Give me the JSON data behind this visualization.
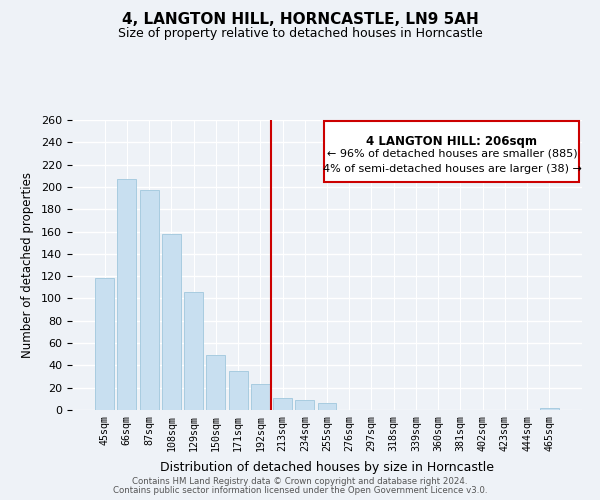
{
  "title": "4, LANGTON HILL, HORNCASTLE, LN9 5AH",
  "subtitle": "Size of property relative to detached houses in Horncastle",
  "xlabel": "Distribution of detached houses by size in Horncastle",
  "ylabel": "Number of detached properties",
  "bar_labels": [
    "45sqm",
    "66sqm",
    "87sqm",
    "108sqm",
    "129sqm",
    "150sqm",
    "171sqm",
    "192sqm",
    "213sqm",
    "234sqm",
    "255sqm",
    "276sqm",
    "297sqm",
    "318sqm",
    "339sqm",
    "360sqm",
    "381sqm",
    "402sqm",
    "423sqm",
    "444sqm",
    "465sqm"
  ],
  "bar_values": [
    118,
    207,
    197,
    158,
    106,
    49,
    35,
    23,
    11,
    9,
    6,
    0,
    0,
    0,
    0,
    0,
    0,
    0,
    0,
    0,
    2
  ],
  "bar_color": "#c8dff0",
  "bar_edge_color": "#a8cce0",
  "vline_x": 7.5,
  "vline_color": "#cc0000",
  "annotation_title": "4 LANGTON HILL: 206sqm",
  "annotation_line1": "← 96% of detached houses are smaller (885)",
  "annotation_line2": "4% of semi-detached houses are larger (38) →",
  "annotation_box_color": "#ffffff",
  "annotation_box_edge": "#cc0000",
  "ylim": [
    0,
    260
  ],
  "yticks": [
    0,
    20,
    40,
    60,
    80,
    100,
    120,
    140,
    160,
    180,
    200,
    220,
    240,
    260
  ],
  "footer1": "Contains HM Land Registry data © Crown copyright and database right 2024.",
  "footer2": "Contains public sector information licensed under the Open Government Licence v3.0.",
  "bg_color": "#eef2f7",
  "plot_bg_color": "#eef2f7"
}
